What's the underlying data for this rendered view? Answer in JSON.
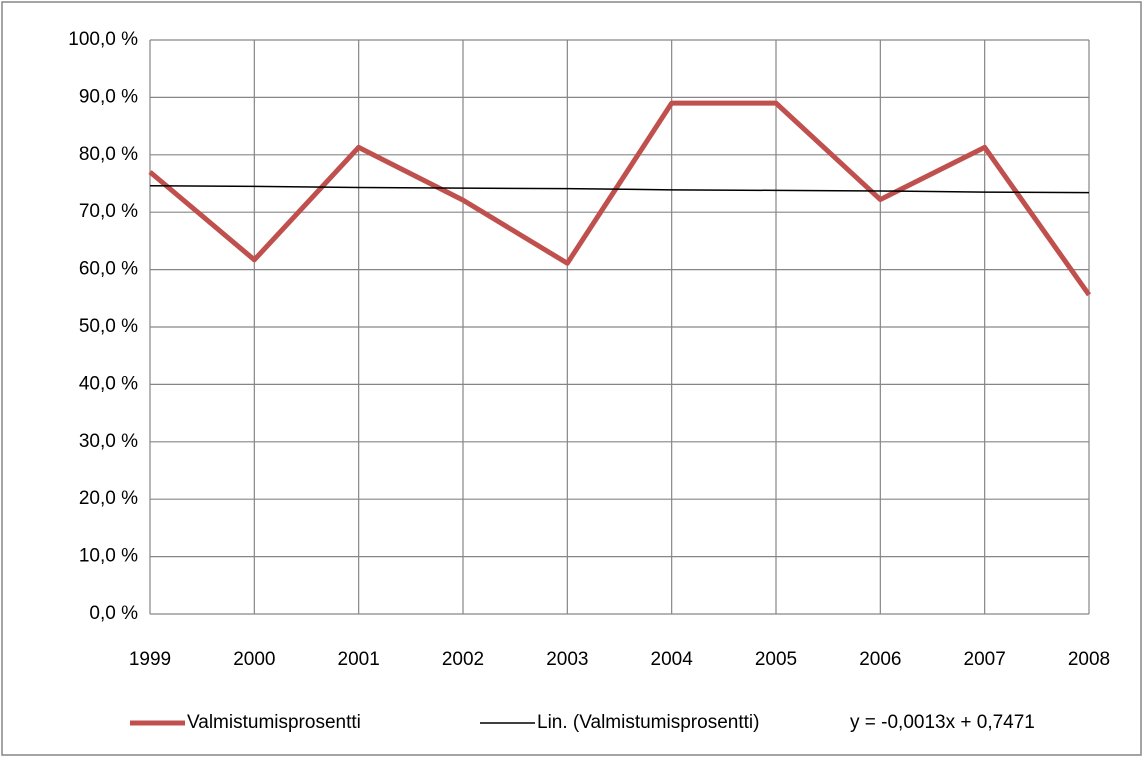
{
  "chart_data": {
    "type": "line",
    "categories": [
      "1999",
      "2000",
      "2001",
      "2002",
      "2003",
      "2004",
      "2005",
      "2006",
      "2007",
      "2008"
    ],
    "series": [
      {
        "name": "Valmistumisprosentti",
        "color": "#c0504d",
        "values": [
          77.0,
          61.7,
          81.3,
          72.1,
          61.1,
          89.0,
          89.0,
          72.2,
          81.3,
          55.6
        ]
      },
      {
        "name": "Lin. (Valmistumisprosentti)",
        "color": "#000000",
        "values": [
          74.6,
          74.5,
          74.3,
          74.2,
          74.1,
          73.9,
          73.8,
          73.7,
          73.5,
          73.4
        ]
      }
    ],
    "annotation": "y = -0,0013x + 0,7471",
    "ylim": [
      0,
      100
    ],
    "yticks": [
      {
        "value": 0,
        "label": "0,0 %"
      },
      {
        "value": 10,
        "label": "10,0 %"
      },
      {
        "value": 20,
        "label": "20,0 %"
      },
      {
        "value": 30,
        "label": "30,0 %"
      },
      {
        "value": 40,
        "label": "40,0 %"
      },
      {
        "value": 50,
        "label": "50,0 %"
      },
      {
        "value": 60,
        "label": "60,0 %"
      },
      {
        "value": 70,
        "label": "70,0 %"
      },
      {
        "value": 80,
        "label": "80,0 %"
      },
      {
        "value": 90,
        "label": "90,0 %"
      },
      {
        "value": 100,
        "label": "100,0 %"
      }
    ],
    "grid": true,
    "legend": "bottom"
  }
}
